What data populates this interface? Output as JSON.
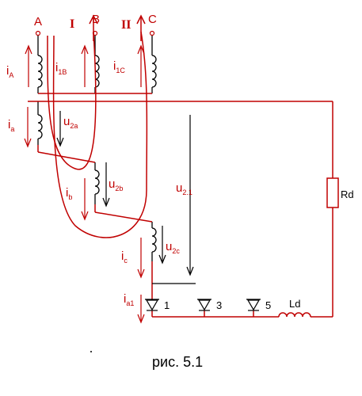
{
  "colors": {
    "wire": "#c00000",
    "coil": "#000000",
    "component": "#c00000",
    "text_red": "#c00000",
    "text_black": "#000000"
  },
  "terminals": {
    "A": "A",
    "B": "B",
    "C": "C"
  },
  "currents_primary": {
    "roman1": "I",
    "roman2": "II"
  },
  "labels": {
    "iA": {
      "main": "i",
      "sub": "A"
    },
    "i1B": {
      "main": "i",
      "sub": "1B"
    },
    "i1C": {
      "main": "i",
      "sub": "1C"
    },
    "ia": {
      "main": "i",
      "sub": "a"
    },
    "u2a": {
      "main": "u",
      "sub": "2a"
    },
    "ib": {
      "main": "i",
      "sub": "b"
    },
    "u2b": {
      "main": "u",
      "sub": "2b"
    },
    "ic": {
      "main": "i",
      "sub": "c"
    },
    "u2c": {
      "main": "u",
      "sub": "2c"
    },
    "u21": {
      "main": "u",
      "sub": "2.1"
    },
    "ia1": {
      "main": "i",
      "sub": "a1"
    }
  },
  "components": {
    "load_resistor": "Rd",
    "choke": "Ld",
    "diode1": "1",
    "diode3": "3",
    "diode5": "5"
  },
  "caption": "рис. 5.1"
}
